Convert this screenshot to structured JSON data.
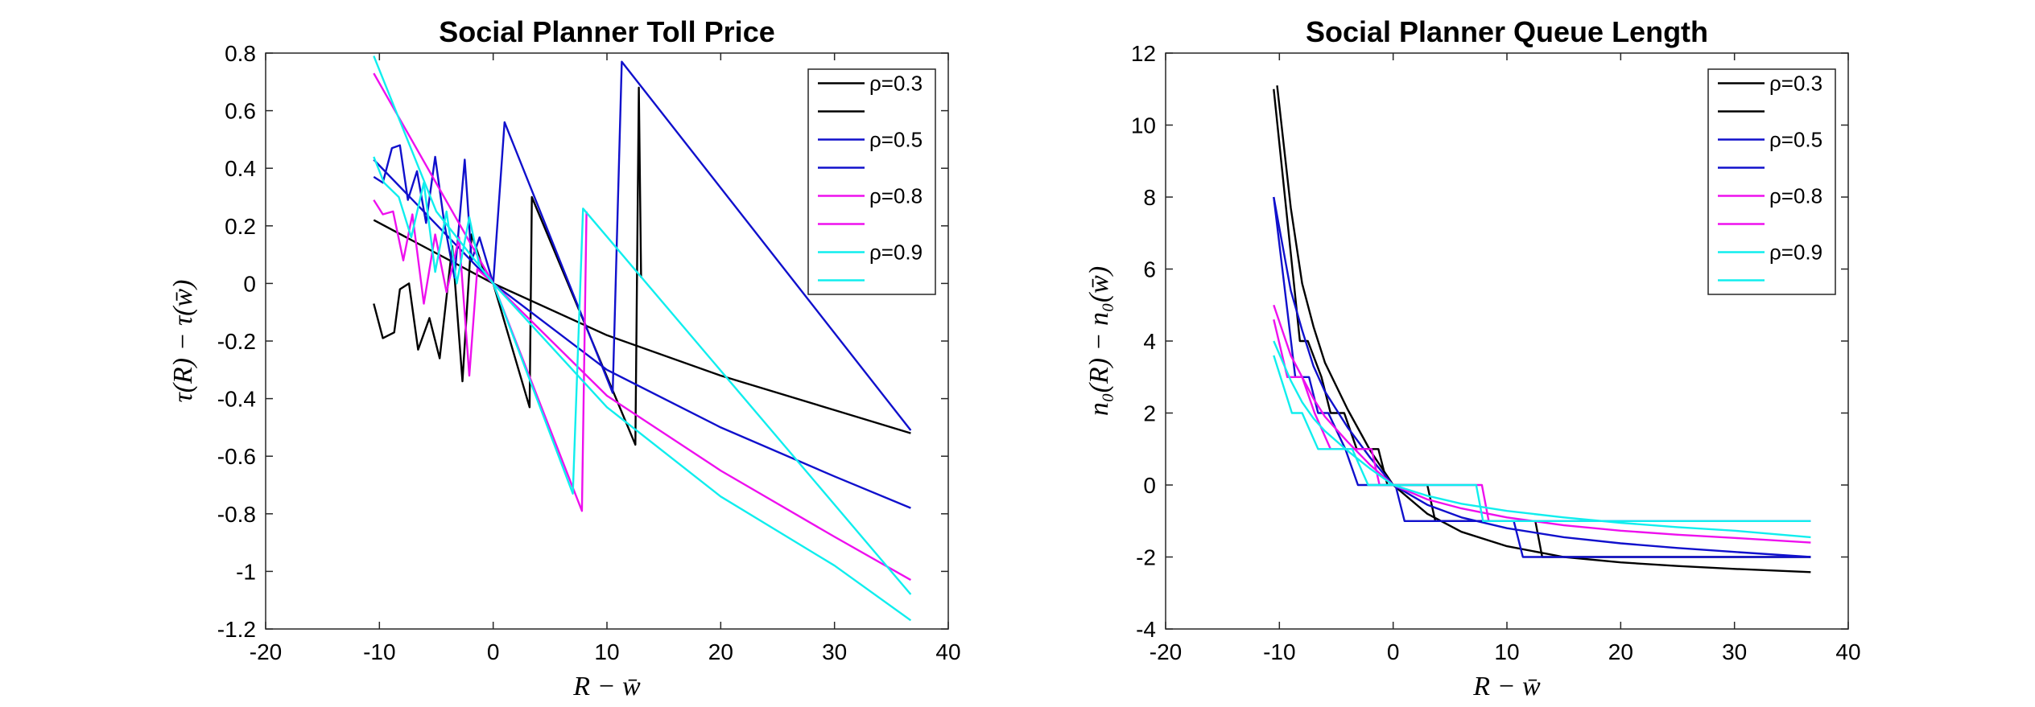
{
  "colors": {
    "black": "#000000",
    "blue": "#1010cc",
    "magenta": "#ee10ee",
    "cyan": "#10eeee"
  },
  "legend_entries": [
    {
      "label": "ρ=0.3",
      "color": "#000000"
    },
    {
      "label": "",
      "color": "#000000"
    },
    {
      "label": "ρ=0.5",
      "color": "#1010cc"
    },
    {
      "label": "",
      "color": "#1010cc"
    },
    {
      "label": "ρ=0.8",
      "color": "#ee10ee"
    },
    {
      "label": "",
      "color": "#ee10ee"
    },
    {
      "label": "ρ=0.9",
      "color": "#10eeee"
    },
    {
      "label": "",
      "color": "#10eeee"
    }
  ],
  "chart_data": [
    {
      "type": "line",
      "title": "Social Planner Toll Price",
      "xlabel": "R − w̄",
      "ylabel": "τ(R) − τ(w̄)",
      "xlim": [
        -20,
        40
      ],
      "ylim": [
        -1.2,
        0.8
      ],
      "xticks": [
        -20,
        -10,
        0,
        10,
        20,
        30,
        40
      ],
      "yticks": [
        0.8,
        0.6,
        0.4,
        0.2,
        0,
        -0.2,
        -0.4,
        -0.6,
        -0.8,
        -1,
        -1.2
      ],
      "ytick_labels": [
        "0.8",
        "0.6",
        "0.4",
        "0.2",
        "0",
        "-0.2",
        "-0.4",
        "-0.6",
        "-0.8",
        "-1",
        "-1.2"
      ],
      "legend_position": "top-right",
      "series": [
        {
          "name": "ρ=0.3",
          "color": "#000000",
          "x": [
            -10.5,
            0,
            10,
            20,
            30,
            36.7
          ],
          "y": [
            0.22,
            0,
            -0.18,
            -0.32,
            -0.44,
            -0.52
          ]
        },
        {
          "name": "",
          "color": "#000000",
          "x": [
            -10.5,
            -9.7,
            -8.7,
            -8.2,
            -7.4,
            -6.6,
            -5.6,
            -4.7,
            -3.6,
            -2.7,
            -1.9,
            -0.7,
            0,
            3.2,
            3.4,
            12.5,
            12.8,
            13
          ],
          "y": [
            -0.07,
            -0.19,
            -0.17,
            -0.02,
            0.0,
            -0.23,
            -0.12,
            -0.26,
            0.13,
            -0.34,
            0.17,
            0.03,
            0.0,
            -0.43,
            0.3,
            -0.56,
            0.68,
            0.02
          ]
        },
        {
          "name": "ρ=0.5",
          "color": "#1010cc",
          "x": [
            -10.5,
            0,
            10,
            20,
            30,
            36.7
          ],
          "y": [
            0.43,
            0,
            -0.3,
            -0.5,
            -0.67,
            -0.78
          ]
        },
        {
          "name": "",
          "color": "#1010cc",
          "x": [
            -10.5,
            -9.7,
            -8.9,
            -8.2,
            -7.5,
            -6.7,
            -5.9,
            -5.1,
            -4.3,
            -3.4,
            -2.5,
            -1.9,
            -1.2,
            0,
            1,
            10.5,
            11.3,
            36.7
          ],
          "y": [
            0.37,
            0.35,
            0.47,
            0.48,
            0.29,
            0.39,
            0.21,
            0.44,
            0.21,
            0.02,
            0.43,
            0.08,
            0.16,
            0,
            0.56,
            -0.38,
            0.77,
            -0.51
          ]
        },
        {
          "name": "ρ=0.8",
          "color": "#ee10ee",
          "x": [
            -10.5,
            0,
            10,
            20,
            30,
            36.7
          ],
          "y": [
            0.73,
            0,
            -0.39,
            -0.65,
            -0.88,
            -1.03
          ]
        },
        {
          "name": "",
          "color": "#ee10ee",
          "x": [
            -10.5,
            -9.7,
            -8.8,
            -7.9,
            -7.1,
            -6.1,
            -5.1,
            -4.1,
            -3,
            -2.1,
            -1.4,
            0,
            7.8,
            8.2
          ],
          "y": [
            0.29,
            0.24,
            0.25,
            0.08,
            0.24,
            -0.07,
            0.17,
            -0.03,
            0.16,
            -0.32,
            0.05,
            0,
            -0.79,
            0.25
          ]
        },
        {
          "name": "ρ=0.9",
          "color": "#10eeee",
          "x": [
            -10.5,
            -5,
            0,
            10,
            20,
            30,
            36.7
          ],
          "y": [
            0.79,
            0.25,
            0,
            -0.43,
            -0.74,
            -0.98,
            -1.17
          ]
        },
        {
          "name": "",
          "color": "#10eeee",
          "x": [
            -10.5,
            -9.6,
            -8.3,
            -7.2,
            -6.1,
            -5.1,
            -4.1,
            -3.2,
            -2.1,
            -1.2,
            0,
            7,
            7.9,
            36.7
          ],
          "y": [
            0.44,
            0.35,
            0.3,
            0.16,
            0.35,
            0.04,
            0.25,
            0.0,
            0.23,
            0.06,
            0,
            -0.73,
            0.26,
            -1.08
          ]
        }
      ]
    },
    {
      "type": "line",
      "title": "Social Planner Queue Length",
      "xlabel": "R − w̄",
      "ylabel": "n₀(R) − n₀(w̄)",
      "xlim": [
        -20,
        40
      ],
      "ylim": [
        -4,
        12
      ],
      "xticks": [
        -20,
        -10,
        0,
        10,
        20,
        30,
        40
      ],
      "yticks": [
        12,
        10,
        8,
        6,
        4,
        2,
        0,
        -2,
        -4
      ],
      "ytick_labels": [
        "12",
        "10",
        "8",
        "6",
        "4",
        "2",
        "0",
        "-2",
        "-4"
      ],
      "legend_position": "top-right",
      "series": [
        {
          "name": "ρ=0.3",
          "color": "#000000",
          "x": [
            -10.2,
            -9,
            -8,
            -7,
            -6,
            -4,
            -2,
            0,
            3,
            6,
            10,
            15,
            20,
            25,
            30,
            36.7
          ],
          "y": [
            11.1,
            7.7,
            5.6,
            4.4,
            3.4,
            2.1,
            0.95,
            0,
            -0.8,
            -1.3,
            -1.7,
            -2.0,
            -2.15,
            -2.25,
            -2.33,
            -2.42
          ]
        },
        {
          "name": "",
          "color": "#000000",
          "x": [
            -10.5,
            -8.2,
            -7.5,
            -6.3,
            -5.5,
            -4.3,
            -3.2,
            -2.2,
            -1.3,
            -0.5,
            3,
            3.7,
            12.5,
            13.1,
            36.7
          ],
          "y": [
            11,
            4,
            4,
            3,
            2,
            2,
            1,
            1,
            1,
            0,
            0,
            -1,
            -1,
            -2,
            -2
          ]
        },
        {
          "name": "ρ=0.5",
          "color": "#1010cc",
          "x": [
            -10.5,
            -9,
            -8,
            -7,
            -6,
            -4,
            -2,
            0,
            3,
            6,
            10,
            15,
            20,
            25,
            30,
            36.7
          ],
          "y": [
            8.0,
            5.4,
            4.3,
            3.3,
            2.6,
            1.6,
            0.75,
            0,
            -0.55,
            -0.9,
            -1.2,
            -1.45,
            -1.62,
            -1.75,
            -1.86,
            -2.0
          ]
        },
        {
          "name": "",
          "color": "#1010cc",
          "x": [
            -10.5,
            -8.6,
            -7.4,
            -6.6,
            -5.7,
            -4.2,
            -3.1,
            0.2,
            1,
            10.6,
            11.4,
            36.7
          ],
          "y": [
            8,
            3,
            3,
            2,
            2,
            1,
            0,
            0,
            -1,
            -1,
            -2,
            -2
          ]
        },
        {
          "name": "ρ=0.8",
          "color": "#ee10ee",
          "x": [
            -10.5,
            -9,
            -8,
            -7,
            -6,
            -4,
            -2,
            0,
            3,
            6,
            10,
            15,
            20,
            25,
            30,
            36.7
          ],
          "y": [
            5.0,
            3.6,
            3.0,
            2.4,
            1.9,
            1.2,
            0.55,
            0,
            -0.4,
            -0.65,
            -0.9,
            -1.12,
            -1.27,
            -1.38,
            -1.47,
            -1.6
          ]
        },
        {
          "name": "",
          "color": "#ee10ee",
          "x": [
            -10.5,
            -9.3,
            -8,
            -6.9,
            -5.5,
            -3.8,
            -1.9,
            -1.2,
            7.8,
            8.4,
            36.7
          ],
          "y": [
            4.6,
            3,
            3,
            2,
            1,
            1,
            1,
            0,
            0,
            -1,
            -1
          ]
        },
        {
          "name": "ρ=0.9",
          "color": "#10eeee",
          "x": [
            -10.5,
            -9,
            -8,
            -7,
            -6,
            -4,
            -2,
            0,
            3,
            6,
            10,
            15,
            20,
            25,
            30,
            36.7
          ],
          "y": [
            4.0,
            2.9,
            2.3,
            1.85,
            1.5,
            0.95,
            0.45,
            0,
            -0.3,
            -0.52,
            -0.72,
            -0.9,
            -1.05,
            -1.17,
            -1.27,
            -1.45
          ]
        },
        {
          "name": "",
          "color": "#10eeee",
          "x": [
            -10.5,
            -8.9,
            -8,
            -6.6,
            -5.6,
            -3.6,
            -2.2,
            7.3,
            7.9,
            36.7
          ],
          "y": [
            3.6,
            2,
            2,
            1,
            1,
            1,
            0,
            0,
            -1,
            -1
          ]
        }
      ]
    }
  ]
}
